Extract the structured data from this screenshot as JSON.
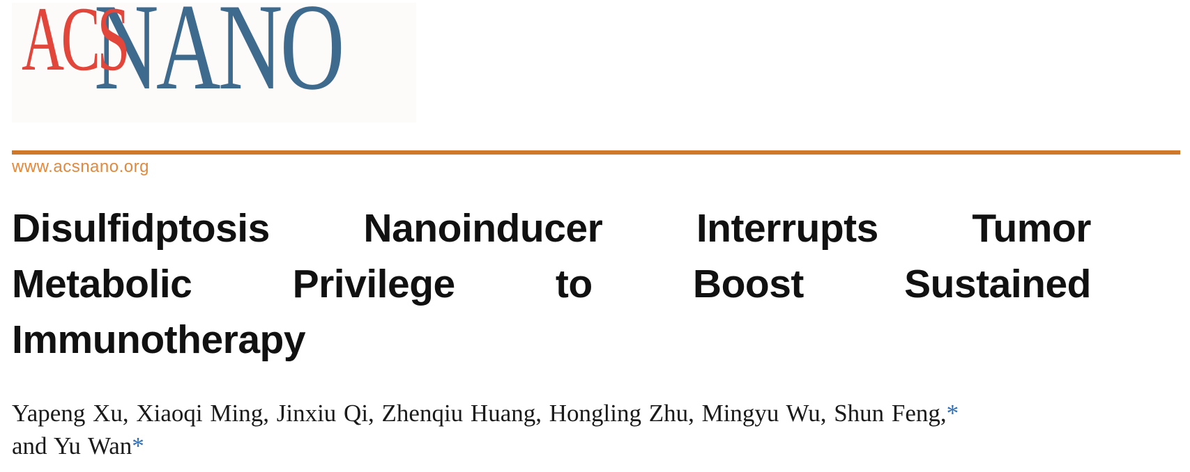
{
  "journal": {
    "logo": {
      "acs": "ACS",
      "nano": "NANO"
    },
    "website_url": "www.acsnano.org"
  },
  "article": {
    "title_lines": [
      "Disulfidptosis Nanoinducer Interrupts Tumor",
      "Metabolic Privilege to Boost Sustained",
      "Immunotherapy"
    ],
    "authors": {
      "line1": "Yapeng Xu, Xiaoqi Ming, Jinxiu Qi, Zhenqiu Huang, Hongling Zhu, Mingyu Wu, Shun Feng,",
      "line2": "and Yu Wan",
      "corresponding_marker": "*"
    }
  },
  "colors": {
    "acs_red": "#E2463B",
    "nano_blue": "#3E6A8E",
    "rule_orange": "#D0782A",
    "url_orange": "#E08A3F",
    "marker_blue": "#2F6EB6",
    "title_text": "#111111"
  }
}
